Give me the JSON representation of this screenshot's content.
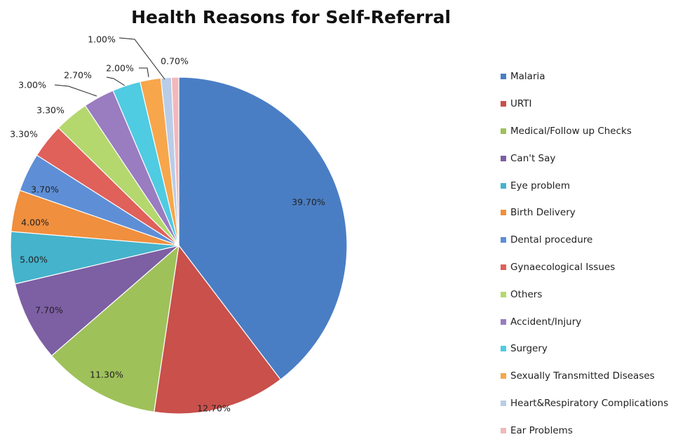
{
  "chart_data": {
    "type": "pie",
    "title": "Health Reasons for Self-Referral",
    "legend_position": "right",
    "slices": [
      {
        "name": "Malaria",
        "value": 39.7,
        "label": "39.70%",
        "color": "#4a7ec4"
      },
      {
        "name": "URTI",
        "value": 12.7,
        "label": "12.70%",
        "color": "#c9504b"
      },
      {
        "name": "Medical/Follow up Checks",
        "value": 11.3,
        "label": "11.30%",
        "color": "#9fc15a"
      },
      {
        "name": "Can't Say",
        "value": 7.7,
        "label": "7.70%",
        "color": "#7d5fa3"
      },
      {
        "name": "Eye problem",
        "value": 5.0,
        "label": "5.00%",
        "color": "#45b3cc"
      },
      {
        "name": "Birth Delivery",
        "value": 4.0,
        "label": "4.00%",
        "color": "#f08f3e"
      },
      {
        "name": "Dental procedure",
        "value": 3.7,
        "label": "3.70%",
        "color": "#5e8fd6"
      },
      {
        "name": "Gynaecological Issues",
        "value": 3.3,
        "label": "3.30%",
        "color": "#e0605a"
      },
      {
        "name": "Others",
        "value": 3.3,
        "label": "3.30%",
        "color": "#b4d86e"
      },
      {
        "name": "Accident/Injury",
        "value": 3.0,
        "label": "3.00%",
        "color": "#9a7cc0"
      },
      {
        "name": "Surgery",
        "value": 2.7,
        "label": "2.70%",
        "color": "#4fcbe2"
      },
      {
        "name": "Sexually Transmitted Diseases",
        "value": 2.0,
        "label": "2.00%",
        "color": "#f7a64c"
      },
      {
        "name": "Heart&Respiratory Complications",
        "value": 1.0,
        "label": "1.00%",
        "color": "#b9cce8"
      },
      {
        "name": "Ear Problems",
        "value": 0.7,
        "label": "0.70%",
        "color": "#f2b8bb"
      }
    ]
  }
}
